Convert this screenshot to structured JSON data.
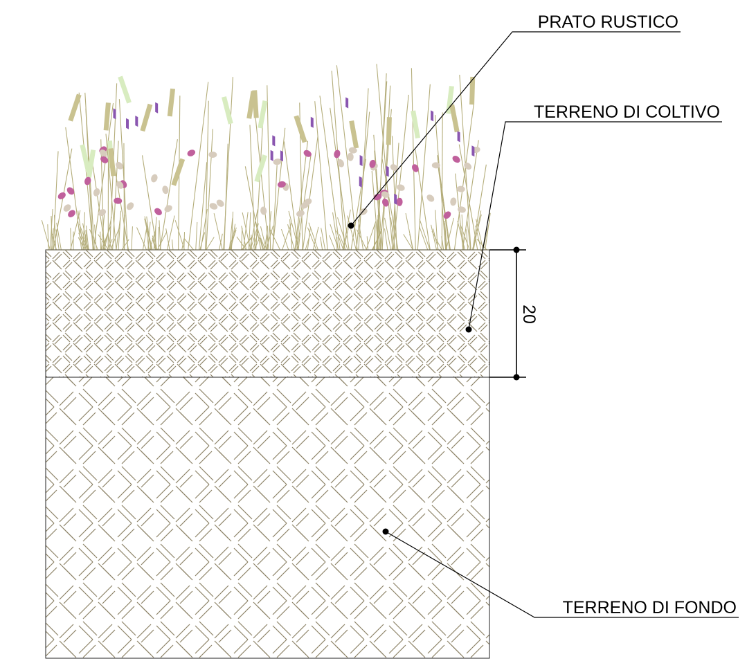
{
  "labels": {
    "prato": "PRATO RUSTICO",
    "coltivo": "TERRENO DI COLTIVO",
    "fondo": "TERRENO DI FONDO"
  },
  "dimension": {
    "value": "20"
  },
  "colors": {
    "grass": "#b4ad7a",
    "grass_light": "#d8ecc0",
    "grass_blade": "#c9c290",
    "flower_pink": "#c0609c",
    "flower_beige": "#d7ccbd",
    "flower_violet": "#8a56b0",
    "hatch": "#8c8266",
    "line": "#222222"
  }
}
